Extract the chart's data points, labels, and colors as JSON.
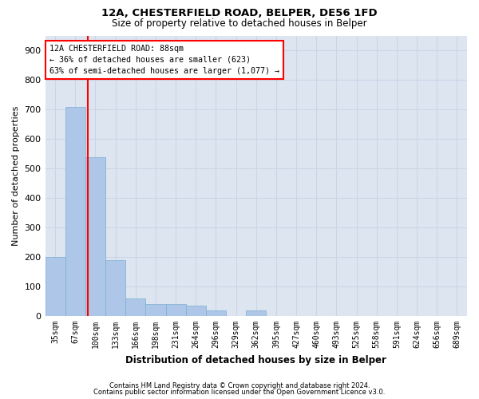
{
  "title1": "12A, CHESTERFIELD ROAD, BELPER, DE56 1FD",
  "title2": "Size of property relative to detached houses in Belper",
  "xlabel": "Distribution of detached houses by size in Belper",
  "ylabel": "Number of detached properties",
  "footer1": "Contains HM Land Registry data © Crown copyright and database right 2024.",
  "footer2": "Contains public sector information licensed under the Open Government Licence v3.0.",
  "categories": [
    "35sqm",
    "67sqm",
    "100sqm",
    "133sqm",
    "166sqm",
    "198sqm",
    "231sqm",
    "264sqm",
    "296sqm",
    "329sqm",
    "362sqm",
    "395sqm",
    "427sqm",
    "460sqm",
    "493sqm",
    "525sqm",
    "558sqm",
    "591sqm",
    "624sqm",
    "656sqm",
    "689sqm"
  ],
  "values": [
    200,
    710,
    540,
    190,
    60,
    40,
    40,
    35,
    20,
    0,
    20,
    0,
    0,
    0,
    0,
    0,
    0,
    0,
    0,
    0,
    0
  ],
  "bar_color": "#aec6e8",
  "bar_edge_color": "#7aafd4",
  "grid_color": "#ccd5e8",
  "background_color": "#dde5f0",
  "annotation_line1": "12A CHESTERFIELD ROAD: 88sqm",
  "annotation_line2": "← 36% of detached houses are smaller (623)",
  "annotation_line3": "63% of semi-detached houses are larger (1,077) →",
  "annotation_box_color": "white",
  "annotation_box_edge": "red",
  "vline_color": "red",
  "vline_x": 1.64,
  "ylim": [
    0,
    950
  ],
  "yticks": [
    0,
    100,
    200,
    300,
    400,
    500,
    600,
    700,
    800,
    900
  ]
}
